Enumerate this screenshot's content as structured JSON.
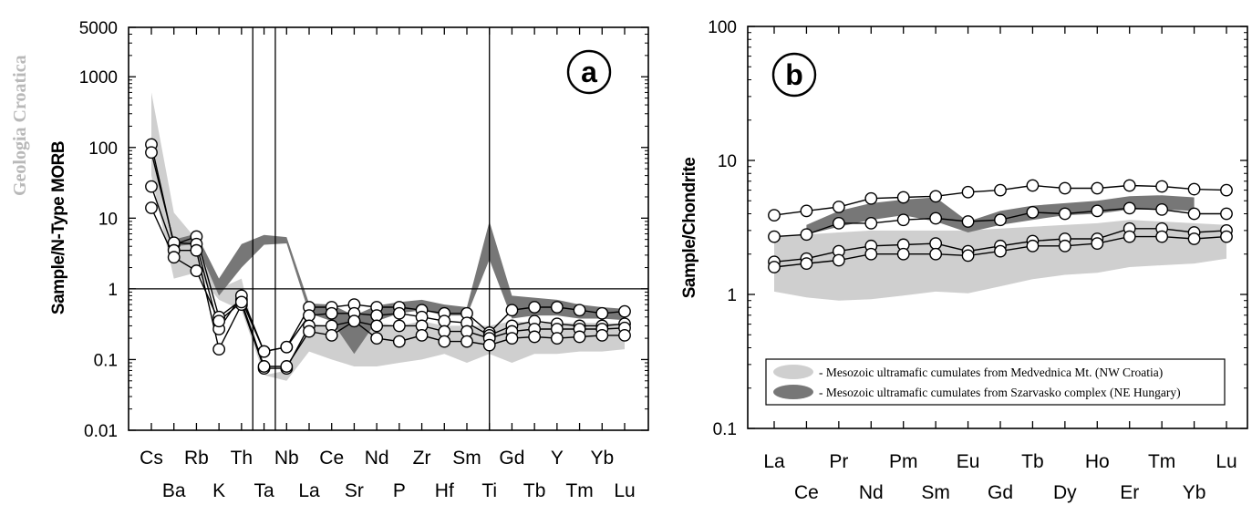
{
  "watermark": "Geologia Croatica",
  "colors": {
    "light_band": "#cfcfcf",
    "dark_band": "#777777",
    "line": "#000000",
    "marker_fill": "#ffffff"
  },
  "chart_data": [
    {
      "id": "a",
      "type": "line",
      "panel_label": "a",
      "ylabel": "Sample/N-Type MORB",
      "yscale": "log",
      "ylim": [
        0.01,
        5000
      ],
      "yticks": [
        "0.01",
        "0.1",
        "1",
        "10",
        "100",
        "1000",
        "5000"
      ],
      "ytick_values": [
        0.01,
        0.1,
        1,
        10,
        100,
        1000,
        5000
      ],
      "categories": [
        "Cs",
        "Ba",
        "Rb",
        "K",
        "Th",
        "Ta",
        "Nb",
        "La",
        "Ce",
        "Sr",
        "Nd",
        "P",
        "Zr",
        "Hf",
        "Sm",
        "Ti",
        "Gd",
        "Tb",
        "Y",
        "Tm",
        "Yb",
        "Lu"
      ],
      "upper_labels": [
        "Cs",
        "Rb",
        "Th",
        "Nb",
        "Ce",
        "Nd",
        "Zr",
        "Sm",
        "Gd",
        "Y",
        "Yb"
      ],
      "lower_labels": [
        "Ba",
        "K",
        "Ta",
        "La",
        "Sr",
        "P",
        "Hf",
        "Ti",
        "Tb",
        "Tm",
        "Lu"
      ],
      "reference_line": 1,
      "vertical_lines": [
        "Th|Ta",
        "Ta|Nb",
        "Ti"
      ],
      "bands": [
        {
          "name": "Medvednica",
          "color": "#cfcfcf",
          "upper": [
            600,
            12,
            5,
            1.0,
            1.4,
            0.06,
            0.07,
            0.32,
            0.3,
            0.32,
            0.33,
            0.3,
            0.35,
            0.3,
            0.3,
            0.3,
            0.35,
            0.33,
            0.33,
            0.33,
            0.33,
            0.32
          ],
          "lower": [
            40,
            1.4,
            1.7,
            0.7,
            0.5,
            0.06,
            0.05,
            0.13,
            0.1,
            0.08,
            0.08,
            0.09,
            0.1,
            0.12,
            0.09,
            0.12,
            0.09,
            0.12,
            0.12,
            0.13,
            0.13,
            0.14
          ]
        },
        {
          "name": "Szarvasko",
          "color": "#777777",
          "upper": [
            null,
            5,
            6,
            1.4,
            4.3,
            5.8,
            5.4,
            0.62,
            0.6,
            0.42,
            0.58,
            0.65,
            0.7,
            0.6,
            0.55,
            9,
            0.8,
            0.75,
            0.7,
            0.6,
            0.55,
            0.52
          ],
          "lower": [
            null,
            4,
            4.3,
            0.8,
            2,
            4.2,
            4.4,
            0.45,
            0.35,
            0.12,
            0.35,
            0.45,
            0.5,
            0.42,
            0.42,
            2.6,
            0.38,
            0.42,
            0.42,
            0.38,
            0.38,
            0.36
          ]
        }
      ],
      "series": [
        {
          "values": [
            110,
            4.2,
            5.5,
            0.4,
            0.7,
            0.13,
            0.15,
            0.55,
            0.55,
            0.6,
            0.55,
            0.55,
            0.5,
            0.45,
            0.45,
            0.24,
            0.5,
            0.55,
            0.55,
            0.5,
            0.45,
            0.48
          ]
        },
        {
          "values": [
            85,
            4.5,
            4.3,
            0.27,
            0.8,
            0.13,
            0.15,
            0.42,
            0.45,
            0.45,
            0.42,
            0.45,
            0.4,
            0.35,
            0.33,
            0.22,
            0.3,
            0.35,
            0.32,
            0.3,
            0.3,
            0.32
          ]
        },
        {
          "values": [
            28,
            3.5,
            3.5,
            0.14,
            0.6,
            0.075,
            0.075,
            0.3,
            0.3,
            0.35,
            0.3,
            0.3,
            0.3,
            0.25,
            0.25,
            0.2,
            0.25,
            0.27,
            0.27,
            0.27,
            0.27,
            0.28
          ]
        },
        {
          "values": [
            14,
            2.8,
            1.8,
            0.35,
            0.65,
            0.08,
            0.08,
            0.25,
            0.22,
            0.35,
            0.2,
            0.18,
            0.22,
            0.18,
            0.18,
            0.16,
            0.2,
            0.21,
            0.2,
            0.21,
            0.22,
            0.22
          ]
        }
      ]
    },
    {
      "id": "b",
      "type": "line",
      "panel_label": "b",
      "ylabel": "Sample/Chondrite",
      "yscale": "log",
      "ylim": [
        0.1,
        100
      ],
      "yticks": [
        "0.1",
        "1",
        "10",
        "100"
      ],
      "ytick_values": [
        0.1,
        1,
        10,
        100
      ],
      "categories": [
        "La",
        "Ce",
        "Pr",
        "Nd",
        "Pm",
        "Sm",
        "Eu",
        "Gd",
        "Tb",
        "Dy",
        "Ho",
        "Er",
        "Tm",
        "Yb",
        "Lu"
      ],
      "upper_labels": [
        "La",
        "Pr",
        "Pm",
        "Eu",
        "Tb",
        "Ho",
        "Tm",
        "Lu"
      ],
      "lower_labels": [
        "Ce",
        "Nd",
        "Sm",
        "Gd",
        "Dy",
        "Er",
        "Yb"
      ],
      "bands": [
        {
          "name": "Medvednica",
          "color": "#cfcfcf",
          "upper": [
            2.7,
            2.8,
            2.9,
            3.0,
            3.0,
            3.0,
            3.0,
            3.1,
            3.2,
            3.3,
            3.4,
            3.6,
            3.5,
            3.4,
            3.3
          ],
          "lower": [
            1.05,
            0.95,
            0.9,
            0.92,
            0.98,
            1.05,
            1.02,
            1.15,
            1.3,
            1.4,
            1.45,
            1.6,
            1.65,
            1.7,
            1.85
          ]
        },
        {
          "name": "Szarvasko",
          "color": "#777777",
          "upper": [
            null,
            3.3,
            4.2,
            4.8,
            5.1,
            5.3,
            3.5,
            4.2,
            4.6,
            4.8,
            5.0,
            5.4,
            5.5,
            5.3,
            null
          ],
          "lower": [
            null,
            2.8,
            3.2,
            3.6,
            3.9,
            3.5,
            2.9,
            3.3,
            3.6,
            3.9,
            4.0,
            4.3,
            4.3,
            4.2,
            null
          ]
        }
      ],
      "series": [
        {
          "values": [
            3.9,
            4.2,
            4.5,
            5.2,
            5.3,
            5.4,
            5.8,
            6.0,
            6.5,
            6.2,
            6.2,
            6.5,
            6.4,
            6.1,
            6.0
          ]
        },
        {
          "values": [
            2.7,
            2.8,
            3.4,
            3.4,
            3.6,
            3.7,
            3.5,
            3.6,
            4.1,
            4.0,
            4.2,
            4.4,
            4.3,
            4.0,
            4.0
          ]
        },
        {
          "values": [
            1.75,
            1.85,
            2.1,
            2.3,
            2.35,
            2.4,
            2.1,
            2.3,
            2.5,
            2.6,
            2.6,
            3.1,
            3.1,
            2.9,
            3.0
          ]
        },
        {
          "values": [
            1.6,
            1.7,
            1.8,
            2.0,
            2.0,
            2.0,
            1.95,
            2.1,
            2.3,
            2.3,
            2.4,
            2.7,
            2.7,
            2.6,
            2.7
          ]
        }
      ],
      "legend": {
        "placement": "bottom",
        "entries": [
          {
            "label": "- Mesozoic ultramafic cumulates from Medvednica Mt. (NW Croatia)",
            "color": "#cfcfcf"
          },
          {
            "label": "- Mesozoic ultramafic cumulates from Szarvasko complex (NE Hungary)",
            "color": "#777777"
          }
        ]
      }
    }
  ]
}
